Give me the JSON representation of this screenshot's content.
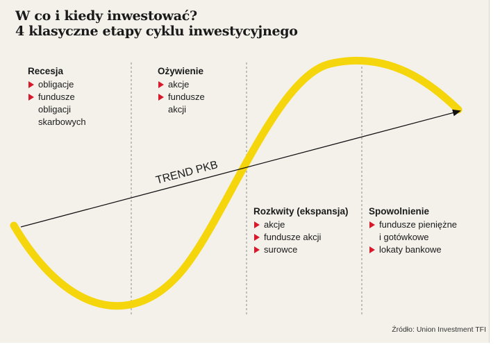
{
  "title": {
    "line1": "W co i kiedy inwestować?",
    "line2": "4 klasyczne etapy cyklu inwestycyjnego"
  },
  "trend_label": "TREND PKB",
  "colors": {
    "background": "#f4f1eb",
    "curve": "#f5d60c",
    "bullet": "#d7192b",
    "text": "#1a1a1a"
  },
  "phases": [
    {
      "title": "Recesja",
      "items": [
        {
          "lines": [
            "obligacje"
          ]
        },
        {
          "lines": [
            "fundusze",
            "obligacji",
            "skarbowych"
          ]
        }
      ]
    },
    {
      "title": "Ożywienie",
      "items": [
        {
          "lines": [
            "akcje"
          ]
        },
        {
          "lines": [
            "fundusze",
            "akcji"
          ]
        }
      ]
    },
    {
      "title": "Rozkwity (ekspansja)",
      "items": [
        {
          "lines": [
            "akcje"
          ]
        },
        {
          "lines": [
            "fundusze akcji"
          ]
        },
        {
          "lines": [
            "surowce"
          ]
        }
      ]
    },
    {
      "title": "Spowolnienie",
      "items": [
        {
          "lines": [
            "fundusze pieniężne",
            "i gotówkowe"
          ]
        },
        {
          "lines": [
            "lokaty bankowe"
          ]
        }
      ]
    }
  ],
  "source": "Źródło: Union Investment TFI"
}
